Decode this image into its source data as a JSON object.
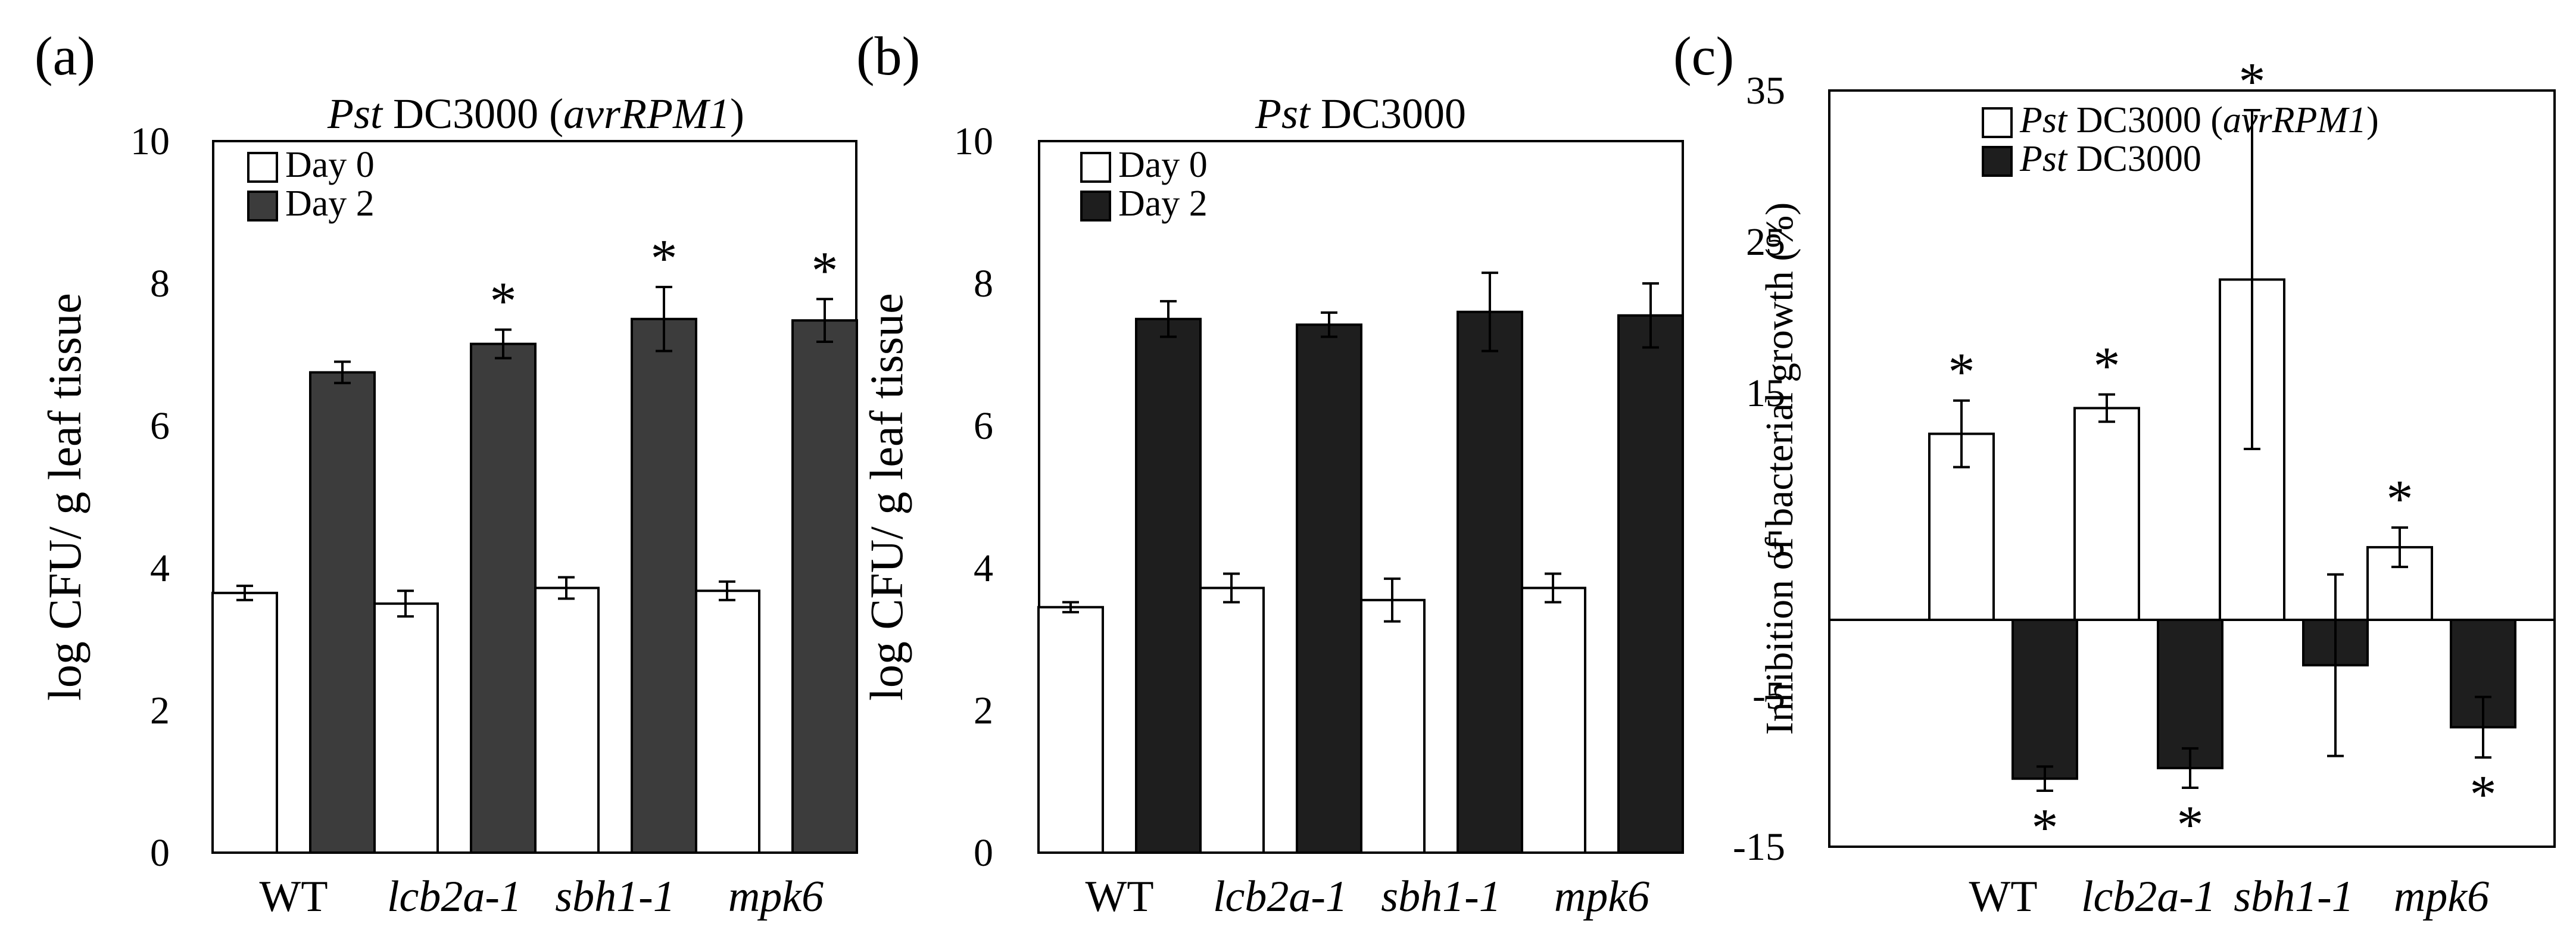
{
  "panels": [
    {
      "panel_label": "(a)",
      "title_parts": [
        {
          "text": "Pst",
          "italic": true
        },
        {
          "text": " DC3000 (",
          "italic": false
        },
        {
          "text": "avrRPM1",
          "italic": true
        },
        {
          "text": ")",
          "italic": false
        }
      ],
      "ylabel": "log CFU/ g leaf tissue",
      "y_ticks": [
        "0",
        "2",
        "4",
        "6",
        "8",
        "10"
      ],
      "categories": [
        {
          "text": "WT",
          "italic": false
        },
        {
          "text": "lcb2a-1",
          "italic": true
        },
        {
          "text": "sbh1-1",
          "italic": true
        },
        {
          "text": "mpk6",
          "italic": true
        }
      ],
      "legend": [
        {
          "label": "Day 0",
          "color": "#ffffff"
        },
        {
          "label": "Day 2",
          "color": "#3c3c3c"
        }
      ]
    },
    {
      "panel_label": "(b)",
      "title_parts": [
        {
          "text": "Pst",
          "italic": true
        },
        {
          "text": " DC3000",
          "italic": false
        }
      ],
      "ylabel": "log CFU/ g leaf tissue",
      "y_ticks": [
        "0",
        "2",
        "4",
        "6",
        "8",
        "10"
      ],
      "categories": [
        {
          "text": "WT",
          "italic": false
        },
        {
          "text": "lcb2a-1",
          "italic": true
        },
        {
          "text": "sbh1-1",
          "italic": true
        },
        {
          "text": "mpk6",
          "italic": true
        }
      ],
      "legend": [
        {
          "label": "Day 0",
          "color": "#ffffff"
        },
        {
          "label": "Day 2",
          "color": "#1e1e1e"
        }
      ]
    },
    {
      "panel_label": "(c)",
      "ylabel": "Inhibition of bacterial growth (%)",
      "y_ticks": [
        "-15",
        "-5",
        "5",
        "15",
        "25",
        "35"
      ],
      "categories": [
        {
          "text": "WT",
          "italic": false
        },
        {
          "text": "lcb2a-1",
          "italic": true
        },
        {
          "text": "sbh1-1",
          "italic": true
        },
        {
          "text": "mpk6",
          "italic": true
        }
      ],
      "legend": [
        {
          "parts": [
            {
              "text": "Pst",
              "italic": true
            },
            {
              "text": " DC3000 (",
              "italic": false
            },
            {
              "text": "avrRPM1",
              "italic": true
            },
            {
              "text": ")",
              "italic": false
            }
          ],
          "color": "#ffffff"
        },
        {
          "parts": [
            {
              "text": "Pst",
              "italic": true
            },
            {
              "text": " DC3000",
              "italic": false
            }
          ],
          "color": "#1e1e1e"
        }
      ]
    }
  ],
  "chart_data": [
    {
      "type": "bar",
      "panel": "(a)",
      "title": "Pst DC3000 (avrRPM1)",
      "ylabel": "log CFU/ g leaf tissue",
      "ylim": [
        0,
        10
      ],
      "categories": [
        "WT",
        "lcb2a-1",
        "sbh1-1",
        "mpk6"
      ],
      "series": [
        {
          "name": "Day 0",
          "values": [
            3.65,
            3.5,
            3.72,
            3.68
          ],
          "errors": [
            0.1,
            0.18,
            0.15,
            0.13
          ],
          "significant": [
            false,
            false,
            false,
            false
          ]
        },
        {
          "name": "Day 2",
          "values": [
            6.75,
            7.15,
            7.5,
            7.48
          ],
          "errors": [
            0.15,
            0.2,
            0.45,
            0.3
          ],
          "significant": [
            false,
            true,
            true,
            true
          ]
        }
      ],
      "legend_position": "top-left"
    },
    {
      "type": "bar",
      "panel": "(b)",
      "title": "Pst DC3000",
      "ylabel": "log CFU/ g leaf tissue",
      "ylim": [
        0,
        10
      ],
      "categories": [
        "WT",
        "lcb2a-1",
        "sbh1-1",
        "mpk6"
      ],
      "series": [
        {
          "name": "Day 0",
          "values": [
            3.45,
            3.72,
            3.55,
            3.72
          ],
          "errors": [
            0.07,
            0.2,
            0.3,
            0.2
          ],
          "significant": [
            false,
            false,
            false,
            false
          ]
        },
        {
          "name": "Day 2",
          "values": [
            7.5,
            7.42,
            7.6,
            7.55
          ],
          "errors": [
            0.25,
            0.17,
            0.55,
            0.45
          ],
          "significant": [
            false,
            false,
            false,
            false
          ]
        }
      ],
      "legend_position": "top-left"
    },
    {
      "type": "bar",
      "panel": "(c)",
      "ylabel": "Inhibition of bacterial growth (%)",
      "ylim": [
        -15,
        35
      ],
      "categories": [
        "WT",
        "lcb2a-1",
        "sbh1-1",
        "mpk6"
      ],
      "series": [
        {
          "name": "Pst DC3000 (avrRPM1)",
          "values": [
            12.3,
            14.0,
            22.5,
            4.8
          ],
          "errors": [
            2.2,
            0.9,
            11.2,
            1.3
          ],
          "significant": [
            true,
            true,
            true,
            true
          ]
        },
        {
          "name": "Pst DC3000",
          "values": [
            -10.5,
            -9.8,
            -3.0,
            -7.1
          ],
          "errors": [
            0.8,
            1.3,
            6.0,
            2.0
          ],
          "significant": [
            true,
            true,
            false,
            true
          ]
        }
      ],
      "legend_position": "top-right"
    }
  ]
}
